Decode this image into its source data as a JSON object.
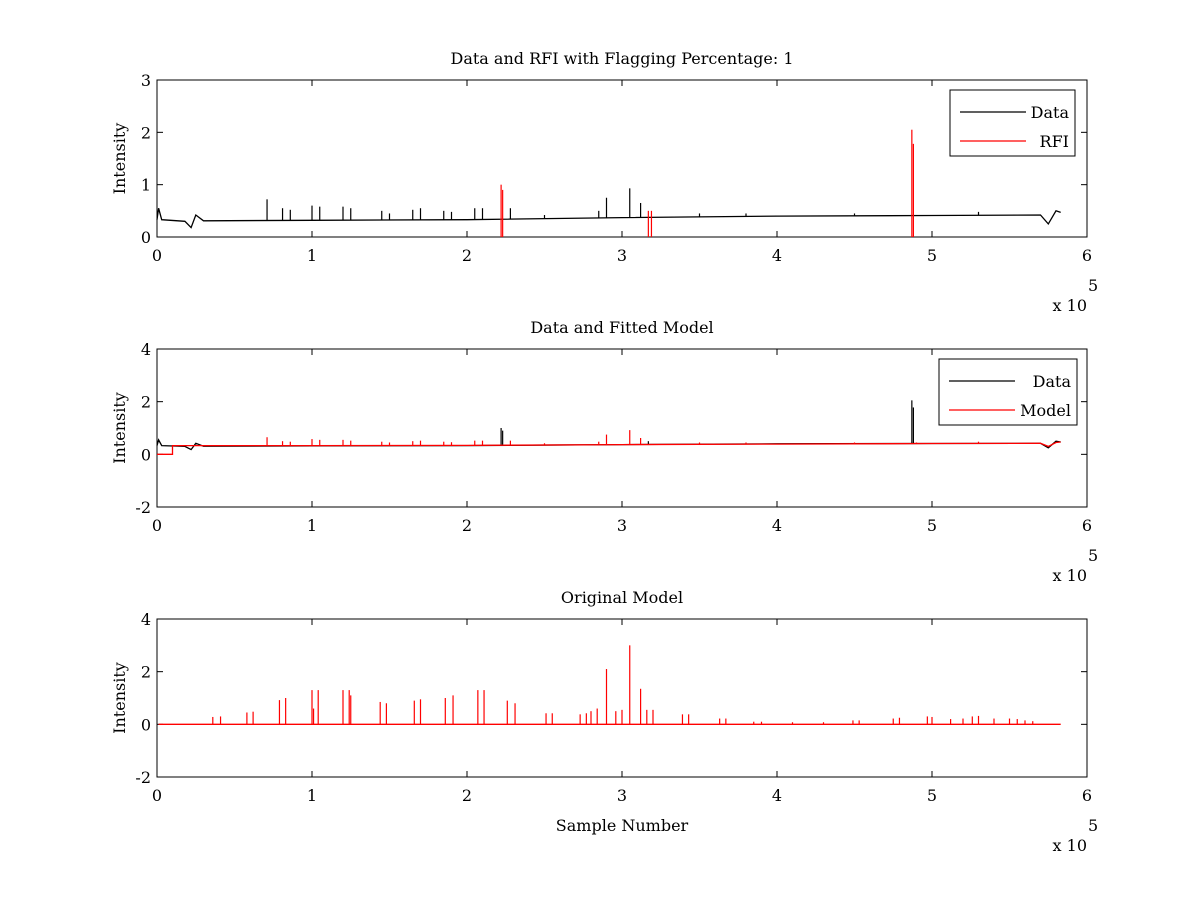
{
  "chart_data": [
    {
      "type": "line",
      "title": "Data and RFI with Flagging Percentage: 1",
      "xlabel": "",
      "ylabel": "Intensity",
      "x_multiplier": "x 10",
      "x_multiplier_exp": "5",
      "xlim": [
        0,
        6
      ],
      "ylim": [
        0,
        3
      ],
      "xticks": [
        "0",
        "1",
        "2",
        "3",
        "4",
        "5",
        "6"
      ],
      "yticks": [
        "0",
        "1",
        "2",
        "3"
      ],
      "legend": {
        "placement": "top-right",
        "entries": [
          "Data",
          "RFI"
        ]
      },
      "grid": false,
      "series": [
        {
          "name": "Data",
          "color": "#000000",
          "baseline": [
            [
              0,
              0.33
            ],
            [
              0.01,
              0.55
            ],
            [
              0.03,
              0.33
            ],
            [
              0.18,
              0.3
            ],
            [
              0.22,
              0.18
            ],
            [
              0.25,
              0.42
            ],
            [
              0.3,
              0.31
            ],
            [
              1.0,
              0.32
            ],
            [
              2.0,
              0.33
            ],
            [
              3.0,
              0.37
            ],
            [
              4.0,
              0.4
            ],
            [
              5.0,
              0.41
            ],
            [
              5.7,
              0.42
            ],
            [
              5.75,
              0.25
            ],
            [
              5.8,
              0.5
            ],
            [
              5.83,
              0.47
            ]
          ],
          "spikes": [
            [
              0.71,
              0.72
            ],
            [
              0.81,
              0.55
            ],
            [
              0.86,
              0.52
            ],
            [
              1.0,
              0.6
            ],
            [
              1.05,
              0.58
            ],
            [
              1.2,
              0.58
            ],
            [
              1.25,
              0.55
            ],
            [
              1.45,
              0.5
            ],
            [
              1.5,
              0.45
            ],
            [
              1.65,
              0.52
            ],
            [
              1.7,
              0.55
            ],
            [
              1.85,
              0.5
            ],
            [
              1.9,
              0.48
            ],
            [
              2.05,
              0.55
            ],
            [
              2.1,
              0.55
            ],
            [
              2.28,
              0.55
            ],
            [
              2.5,
              0.42
            ],
            [
              2.85,
              0.5
            ],
            [
              2.9,
              0.75
            ],
            [
              3.05,
              0.93
            ],
            [
              3.12,
              0.65
            ],
            [
              3.5,
              0.45
            ],
            [
              3.8,
              0.45
            ],
            [
              4.5,
              0.45
            ],
            [
              5.3,
              0.48
            ]
          ]
        },
        {
          "name": "RFI",
          "color": "#ff0000",
          "spikes": [
            [
              2.22,
              1.0
            ],
            [
              2.23,
              0.9
            ],
            [
              3.17,
              0.5
            ],
            [
              3.19,
              0.5
            ],
            [
              4.87,
              2.05
            ],
            [
              4.88,
              1.78
            ]
          ]
        }
      ]
    },
    {
      "type": "line",
      "title": "Data and Fitted Model",
      "xlabel": "",
      "ylabel": "Intensity",
      "x_multiplier": "x 10",
      "x_multiplier_exp": "5",
      "xlim": [
        0,
        6
      ],
      "ylim": [
        -2,
        4
      ],
      "xticks": [
        "0",
        "1",
        "2",
        "3",
        "4",
        "5",
        "6"
      ],
      "yticks": [
        "-2",
        "0",
        "2",
        "4"
      ],
      "legend": {
        "placement": "top-right",
        "entries": [
          "Data",
          "Model"
        ]
      },
      "grid": false,
      "series": [
        {
          "name": "Data",
          "color": "#000000",
          "baseline": [
            [
              0,
              0.33
            ],
            [
              0.01,
              0.55
            ],
            [
              0.03,
              0.33
            ],
            [
              0.18,
              0.3
            ],
            [
              0.22,
              0.18
            ],
            [
              0.25,
              0.42
            ],
            [
              0.3,
              0.31
            ],
            [
              1.0,
              0.32
            ],
            [
              2.0,
              0.33
            ],
            [
              3.0,
              0.37
            ],
            [
              4.0,
              0.4
            ],
            [
              5.0,
              0.41
            ],
            [
              5.7,
              0.42
            ],
            [
              5.75,
              0.25
            ],
            [
              5.8,
              0.5
            ],
            [
              5.83,
              0.47
            ]
          ],
          "spikes": [
            [
              2.22,
              1.0
            ],
            [
              2.23,
              0.9
            ],
            [
              4.87,
              2.05
            ],
            [
              4.88,
              1.78
            ],
            [
              3.17,
              0.5
            ]
          ]
        },
        {
          "name": "Model",
          "color": "#ff0000",
          "baseline": [
            [
              0,
              0.0
            ],
            [
              0.1,
              0.0
            ],
            [
              0.1,
              0.33
            ],
            [
              1.0,
              0.33
            ],
            [
              2.0,
              0.34
            ],
            [
              3.0,
              0.37
            ],
            [
              4.0,
              0.39
            ],
            [
              5.0,
              0.41
            ],
            [
              5.7,
              0.42
            ],
            [
              5.75,
              0.3
            ],
            [
              5.8,
              0.45
            ],
            [
              5.83,
              0.47
            ]
          ],
          "spikes": [
            [
              0.71,
              0.65
            ],
            [
              0.81,
              0.5
            ],
            [
              0.86,
              0.48
            ],
            [
              1.0,
              0.58
            ],
            [
              1.05,
              0.55
            ],
            [
              1.2,
              0.55
            ],
            [
              1.25,
              0.52
            ],
            [
              1.45,
              0.48
            ],
            [
              1.5,
              0.45
            ],
            [
              1.65,
              0.5
            ],
            [
              1.7,
              0.52
            ],
            [
              1.85,
              0.48
            ],
            [
              1.9,
              0.46
            ],
            [
              2.05,
              0.52
            ],
            [
              2.1,
              0.52
            ],
            [
              2.28,
              0.52
            ],
            [
              2.5,
              0.42
            ],
            [
              2.85,
              0.48
            ],
            [
              2.9,
              0.75
            ],
            [
              3.05,
              0.92
            ],
            [
              3.12,
              0.62
            ],
            [
              3.5,
              0.45
            ],
            [
              3.8,
              0.45
            ],
            [
              4.5,
              0.45
            ],
            [
              4.9,
              0.45
            ],
            [
              5.3,
              0.48
            ]
          ]
        }
      ]
    },
    {
      "type": "line",
      "title": "Original Model",
      "xlabel": "Sample Number",
      "ylabel": "Intensity",
      "x_multiplier": "x 10",
      "x_multiplier_exp": "5",
      "xlim": [
        0,
        6
      ],
      "ylim": [
        -2,
        4
      ],
      "xticks": [
        "0",
        "1",
        "2",
        "3",
        "4",
        "5",
        "6"
      ],
      "yticks": [
        "-2",
        "0",
        "2",
        "4"
      ],
      "grid": false,
      "series": [
        {
          "color": "#ff0000",
          "baseline": [
            [
              0.01,
              0.0
            ],
            [
              5.83,
              0.0
            ]
          ],
          "spikes": [
            [
              0.36,
              0.28
            ],
            [
              0.41,
              0.3
            ],
            [
              0.58,
              0.45
            ],
            [
              0.62,
              0.48
            ],
            [
              0.79,
              0.92
            ],
            [
              0.83,
              1.0
            ],
            [
              1.0,
              1.3
            ],
            [
              1.04,
              1.3
            ],
            [
              1.01,
              0.6
            ],
            [
              1.2,
              1.3
            ],
            [
              1.24,
              1.3
            ],
            [
              1.25,
              1.1
            ],
            [
              1.44,
              0.85
            ],
            [
              1.48,
              0.8
            ],
            [
              1.66,
              0.9
            ],
            [
              1.7,
              0.95
            ],
            [
              1.86,
              1.0
            ],
            [
              1.91,
              1.1
            ],
            [
              2.07,
              1.3
            ],
            [
              2.11,
              1.3
            ],
            [
              2.26,
              0.9
            ],
            [
              2.31,
              0.8
            ],
            [
              2.51,
              0.42
            ],
            [
              2.55,
              0.42
            ],
            [
              2.73,
              0.38
            ],
            [
              2.77,
              0.42
            ],
            [
              2.8,
              0.5
            ],
            [
              2.84,
              0.6
            ],
            [
              2.9,
              2.1
            ],
            [
              2.96,
              0.5
            ],
            [
              3.0,
              0.55
            ],
            [
              3.05,
              3.0
            ],
            [
              3.12,
              1.35
            ],
            [
              3.16,
              0.55
            ],
            [
              3.2,
              0.55
            ],
            [
              3.39,
              0.38
            ],
            [
              3.43,
              0.38
            ],
            [
              3.63,
              0.22
            ],
            [
              3.67,
              0.22
            ],
            [
              3.85,
              0.1
            ],
            [
              3.9,
              0.1
            ],
            [
              4.1,
              0.08
            ],
            [
              4.3,
              0.08
            ],
            [
              4.49,
              0.15
            ],
            [
              4.53,
              0.15
            ],
            [
              4.75,
              0.22
            ],
            [
              4.79,
              0.25
            ],
            [
              4.97,
              0.3
            ],
            [
              5.0,
              0.28
            ],
            [
              5.12,
              0.2
            ],
            [
              5.2,
              0.22
            ],
            [
              5.26,
              0.3
            ],
            [
              5.3,
              0.32
            ],
            [
              5.4,
              0.22
            ],
            [
              5.5,
              0.22
            ],
            [
              5.55,
              0.2
            ],
            [
              5.6,
              0.15
            ],
            [
              5.65,
              0.12
            ]
          ]
        }
      ]
    }
  ]
}
